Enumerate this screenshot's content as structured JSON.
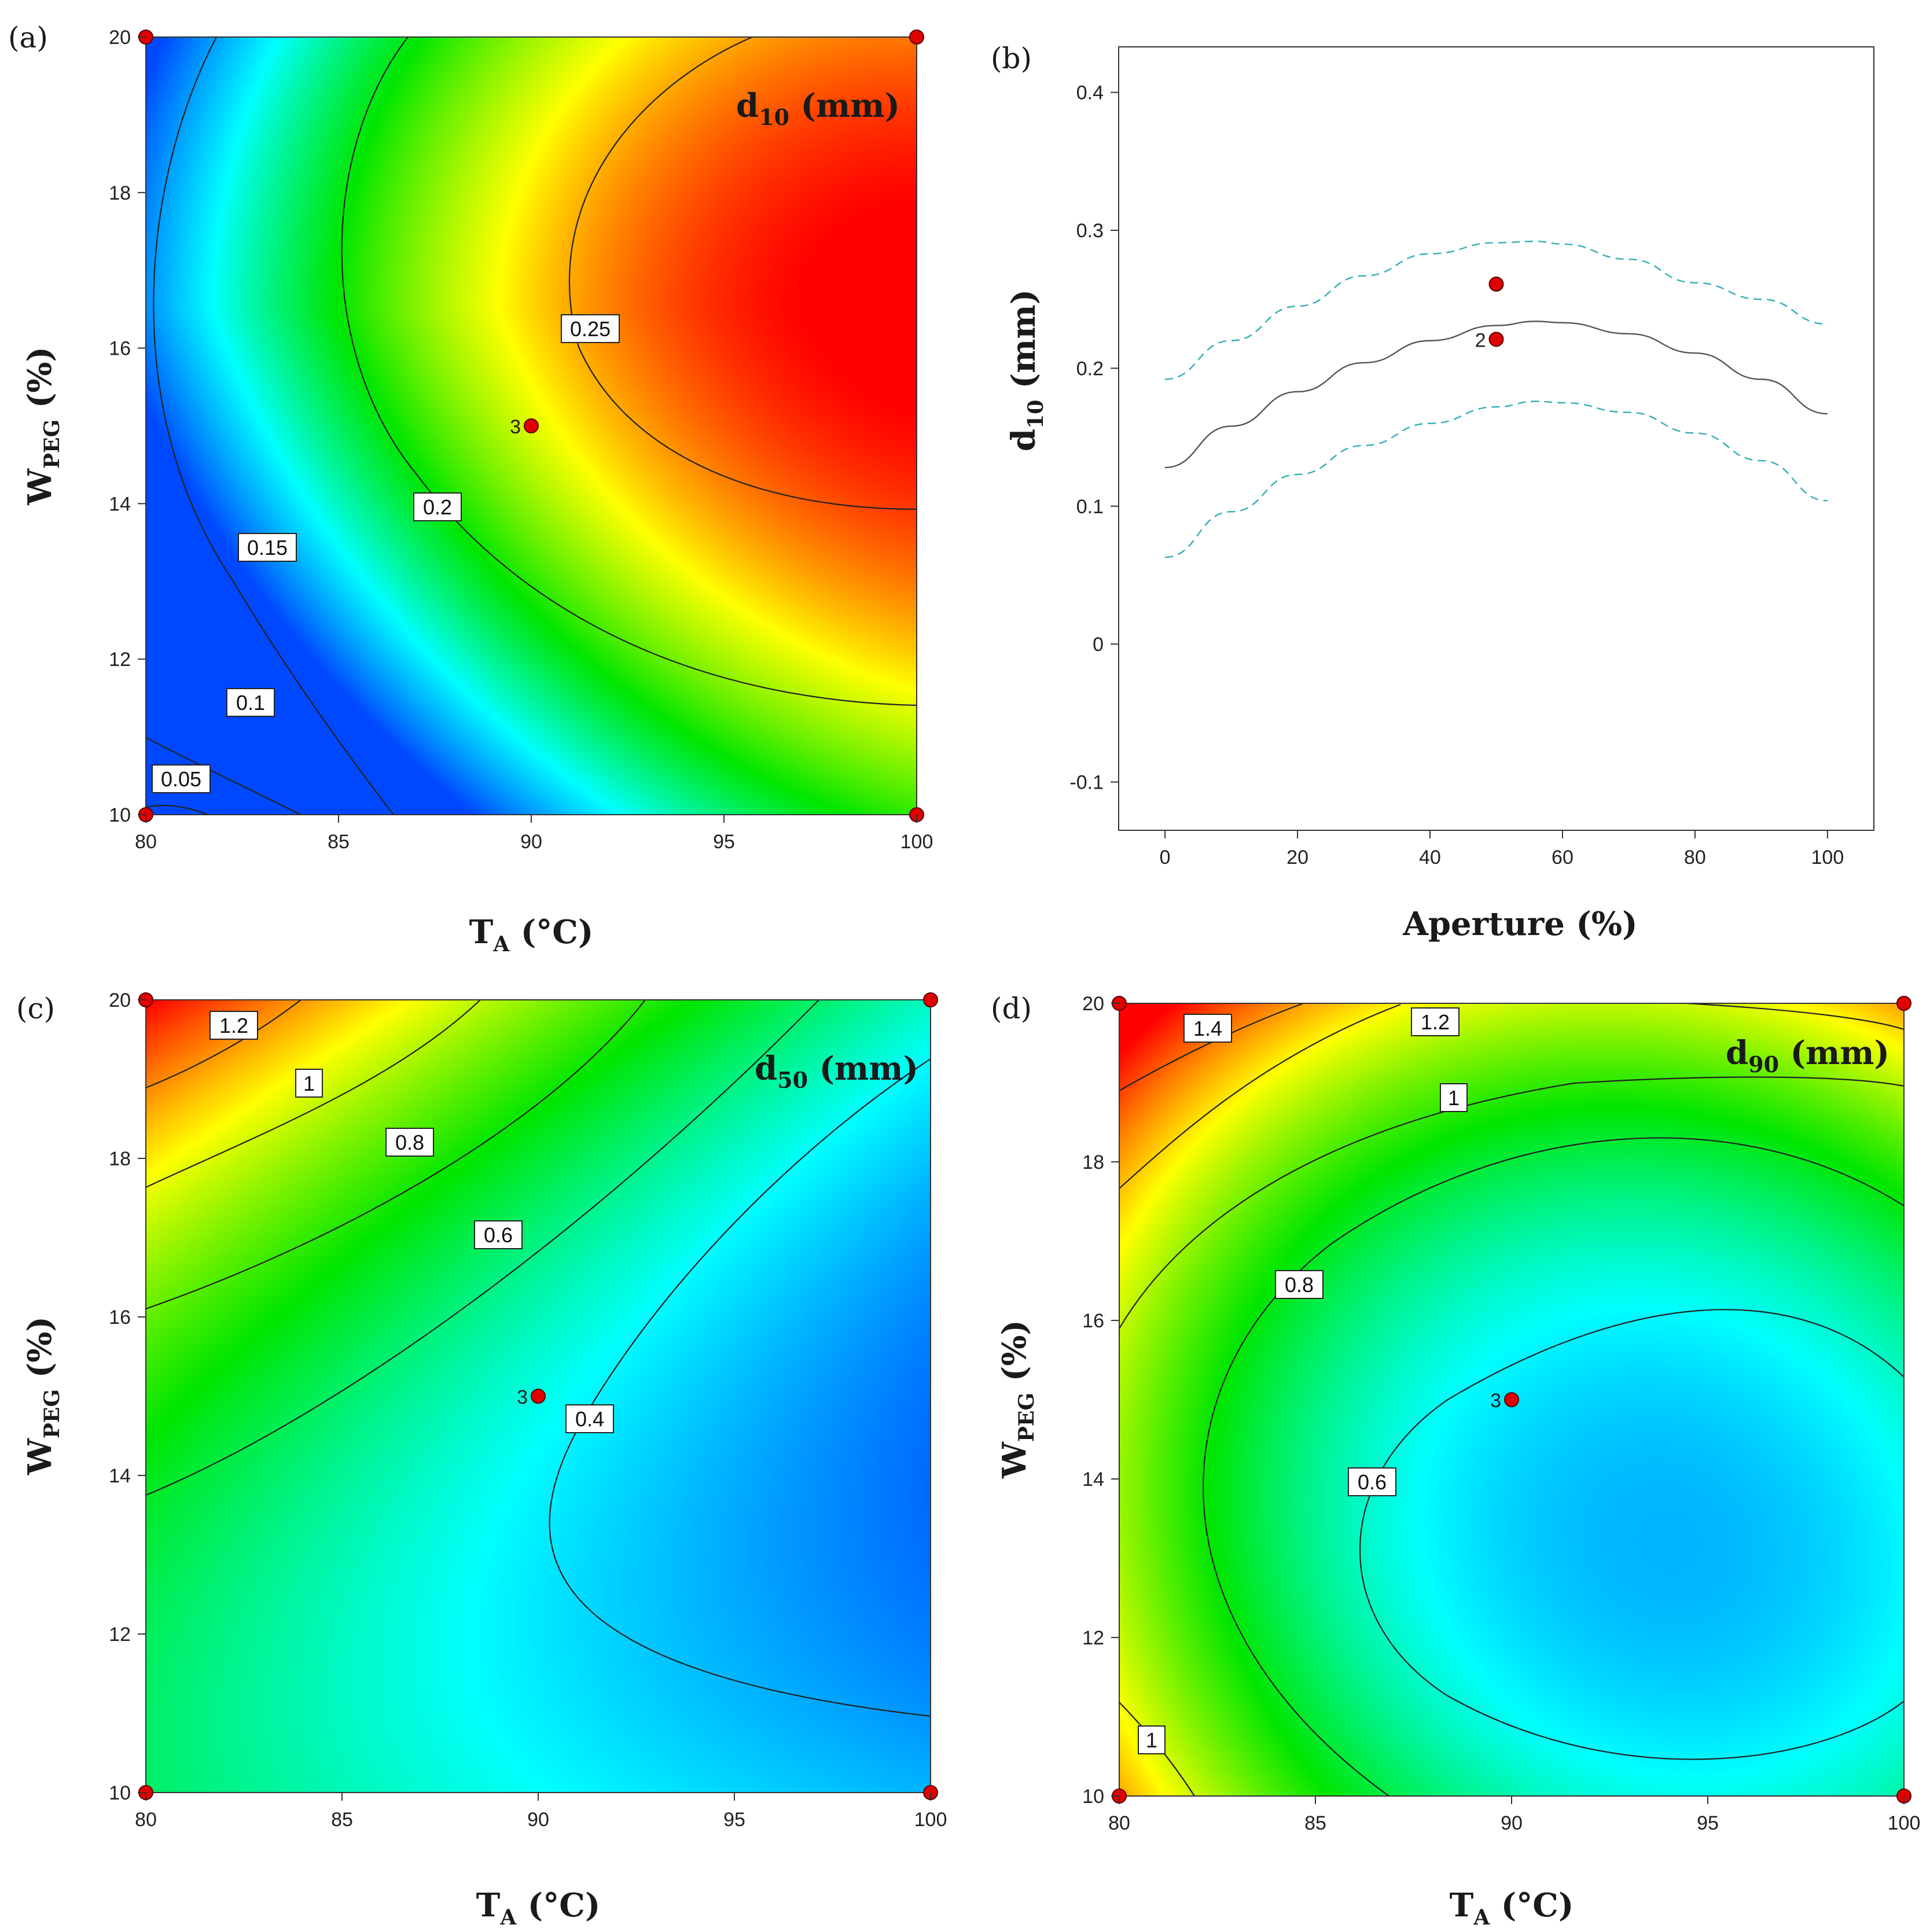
{
  "figure": {
    "panels": [
      {
        "id": "a",
        "tag": "(a)"
      },
      {
        "id": "b",
        "tag": "(b)"
      },
      {
        "id": "c",
        "tag": "(c)"
      },
      {
        "id": "d",
        "tag": "(d)"
      }
    ]
  },
  "chart_data": [
    {
      "id": "a",
      "type": "heatmap",
      "title_main": "d",
      "title_sub": "10",
      "title_unit": " (mm)",
      "xlabel_main": "T",
      "xlabel_sub": "A",
      "xlabel_unit": " (°C)",
      "ylabel_main": "W",
      "ylabel_sub": "PEG",
      "ylabel_unit": " (%)",
      "xlim": [
        80,
        100
      ],
      "ylim": [
        10,
        20
      ],
      "xticks": [
        "80",
        "85",
        "90",
        "95",
        "100"
      ],
      "yticks": [
        "10",
        "12",
        "14",
        "16",
        "18",
        "20"
      ],
      "color_range": [
        0.03,
        0.28
      ],
      "contour_levels": [
        "0.05",
        "0.1",
        "0.15",
        "0.2",
        "0.25"
      ],
      "design_points": [
        {
          "x": 80,
          "y": 10,
          "label": ""
        },
        {
          "x": 80,
          "y": 20,
          "label": ""
        },
        {
          "x": 100,
          "y": 10,
          "label": ""
        },
        {
          "x": 100,
          "y": 20,
          "label": ""
        },
        {
          "x": 90,
          "y": 15,
          "label": "3"
        }
      ]
    },
    {
      "id": "b",
      "type": "line",
      "xlabel": "Aperture (%)",
      "ylabel_main": "d",
      "ylabel_sub": "10",
      "ylabel_unit": " (mm)",
      "xlim": [
        -7,
        107
      ],
      "ylim": [
        -0.135,
        0.433
      ],
      "xticks": [
        "0",
        "20",
        "40",
        "60",
        "80",
        "100"
      ],
      "yticks": [
        "-0.1",
        "0",
        "0.1",
        "0.2",
        "0.3",
        "0.4"
      ],
      "series": [
        {
          "name": "prediction",
          "style": "solid",
          "color": "#555555",
          "x": [
            0,
            10,
            20,
            30,
            40,
            50,
            56,
            60,
            70,
            80,
            90,
            100
          ],
          "y": [
            0.128,
            0.158,
            0.183,
            0.204,
            0.22,
            0.231,
            0.234,
            0.233,
            0.225,
            0.211,
            0.192,
            0.167
          ]
        },
        {
          "name": "upper confidence band",
          "style": "dashed",
          "color": "#31aeb8",
          "x": [
            0,
            10,
            20,
            30,
            40,
            50,
            56,
            60,
            70,
            80,
            90,
            100
          ],
          "y": [
            0.192,
            0.22,
            0.245,
            0.267,
            0.283,
            0.291,
            0.292,
            0.29,
            0.279,
            0.262,
            0.25,
            0.232
          ]
        },
        {
          "name": "lower confidence band",
          "style": "dashed",
          "color": "#31aeb8",
          "x": [
            0,
            10,
            20,
            30,
            40,
            50,
            56,
            60,
            70,
            80,
            90,
            100
          ],
          "y": [
            0.063,
            0.096,
            0.123,
            0.144,
            0.16,
            0.172,
            0.176,
            0.175,
            0.168,
            0.153,
            0.133,
            0.104
          ]
        }
      ],
      "points": [
        {
          "x": 50,
          "y": 0.261,
          "label": ""
        },
        {
          "x": 50,
          "y": 0.221,
          "label": "2"
        }
      ]
    },
    {
      "id": "c",
      "type": "heatmap",
      "title_main": "d",
      "title_sub": "50",
      "title_unit": " (mm)",
      "xlabel_main": "T",
      "xlabel_sub": "A",
      "xlabel_unit": " (°C)",
      "ylabel_main": "W",
      "ylabel_sub": "PEG",
      "ylabel_unit": " (%)",
      "xlim": [
        80,
        100
      ],
      "ylim": [
        10,
        20
      ],
      "xticks": [
        "80",
        "85",
        "90",
        "95",
        "100"
      ],
      "yticks": [
        "10",
        "12",
        "14",
        "16",
        "18",
        "20"
      ],
      "color_range": [
        0.1,
        1.35
      ],
      "contour_levels": [
        "0.4",
        "0.6",
        "0.8",
        "1",
        "1.2"
      ],
      "design_points": [
        {
          "x": 80,
          "y": 10,
          "label": ""
        },
        {
          "x": 80,
          "y": 20,
          "label": ""
        },
        {
          "x": 100,
          "y": 10,
          "label": ""
        },
        {
          "x": 100,
          "y": 20,
          "label": ""
        },
        {
          "x": 90,
          "y": 15,
          "label": "3"
        }
      ]
    },
    {
      "id": "d",
      "type": "heatmap",
      "title_main": "d",
      "title_sub": "90",
      "title_unit": " (mm)",
      "xlabel_main": "T",
      "xlabel_sub": "A",
      "xlabel_unit": " (°C)",
      "ylabel_main": "W",
      "ylabel_sub": "PEG",
      "ylabel_unit": " (%)",
      "xlim": [
        80,
        100
      ],
      "ylim": [
        10,
        20
      ],
      "xticks": [
        "80",
        "85",
        "90",
        "95",
        "100"
      ],
      "yticks": [
        "10",
        "12",
        "14",
        "16",
        "18",
        "20"
      ],
      "color_range": [
        0.3,
        1.65
      ],
      "contour_levels": [
        "0.6",
        "0.8",
        "1",
        "1.2",
        "1.4"
      ],
      "design_points": [
        {
          "x": 80,
          "y": 10,
          "label": ""
        },
        {
          "x": 80,
          "y": 20,
          "label": ""
        },
        {
          "x": 100,
          "y": 10,
          "label": ""
        },
        {
          "x": 100,
          "y": 20,
          "label": ""
        },
        {
          "x": 90,
          "y": 15,
          "label": "3"
        }
      ]
    }
  ]
}
